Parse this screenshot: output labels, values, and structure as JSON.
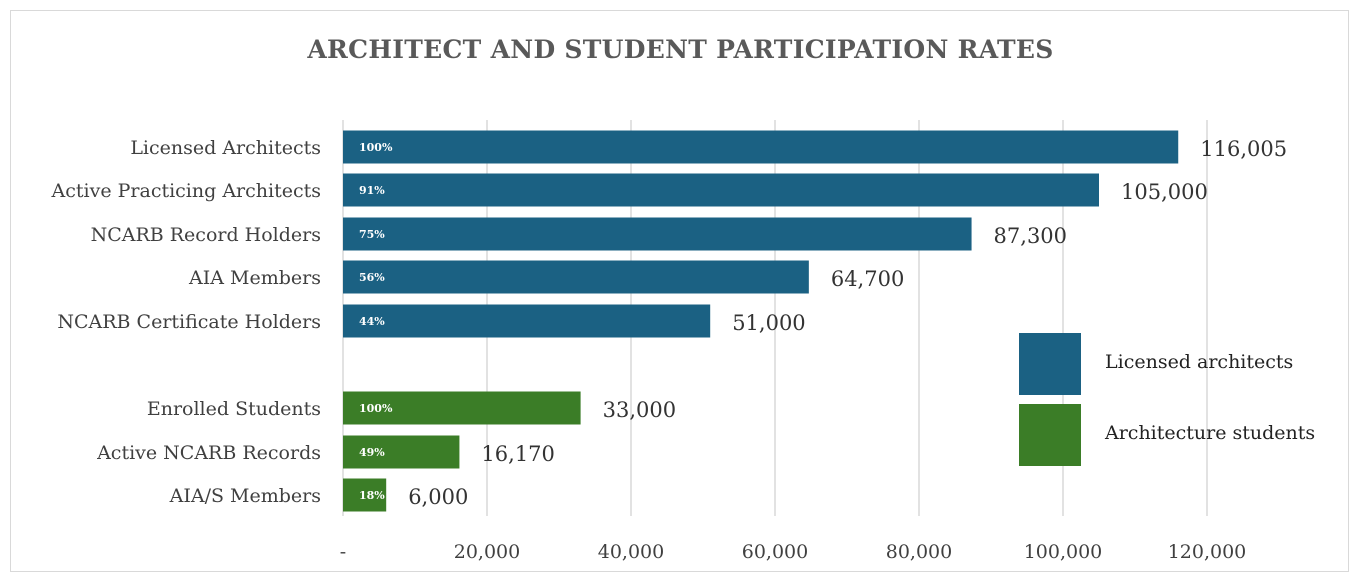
{
  "title": "ARCHITECT AND STUDENT PARTICIPATION RATES",
  "chart_data": {
    "type": "bar",
    "orientation": "horizontal",
    "title": "ARCHITECT AND STUDENT PARTICIPATION RATES",
    "xlim": [
      0,
      120000
    ],
    "x_ticks": [
      0,
      20000,
      40000,
      60000,
      80000,
      100000,
      120000
    ],
    "x_tick_labels": [
      "-",
      "20,000",
      "40,000",
      "60,000",
      "80,000",
      "100,000",
      "120,000"
    ],
    "grid": "vertical",
    "legend_position": "right",
    "series": [
      {
        "name": "Licensed architects",
        "color": "#1b6183",
        "categories": [
          "Licensed Architects",
          "Active Practicing Architects",
          "NCARB Record Holders",
          "AIA Members",
          "NCARB Certificate Holders"
        ],
        "values": [
          116005,
          105000,
          87300,
          64700,
          51000
        ],
        "value_labels": [
          "116,005",
          "105,000",
          "87,300",
          "64,700",
          "51,000"
        ],
        "percent_labels": [
          "100%",
          "91%",
          "75%",
          "56%",
          "44%"
        ]
      },
      {
        "name": "Architecture students",
        "color": "#3b7d27",
        "categories": [
          "Enrolled Students",
          "Active NCARB Records",
          "AIA/S Members"
        ],
        "values": [
          33000,
          16170,
          6000
        ],
        "value_labels": [
          "33,000",
          "16,170",
          "6,000"
        ],
        "percent_labels": [
          "100%",
          "49%",
          "18%"
        ]
      }
    ]
  }
}
